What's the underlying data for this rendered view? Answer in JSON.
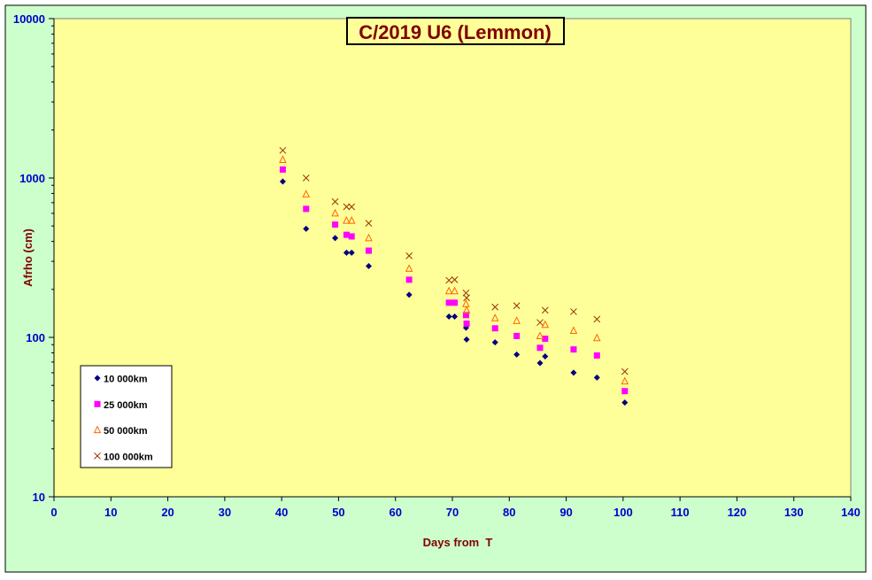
{
  "colors": {
    "outer_background": "#CCFFCC",
    "plot_background": "#FFFF99",
    "axis_tick_labels": "#0000CC",
    "axis_titles": "#800000",
    "title_text": "#800000"
  },
  "chart_data": {
    "type": "scatter",
    "title": "C/2019 U6 (Lemmon)",
    "xlabel": "Days from  T",
    "ylabel": "Afrho (cm)",
    "xlim": [
      0,
      140
    ],
    "ylim": [
      10,
      10000
    ],
    "yscale": "log",
    "grid": false,
    "legend_position": "bottom-left",
    "x_ticks": [
      "0",
      "10",
      "20",
      "30",
      "40",
      "50",
      "60",
      "70",
      "80",
      "90",
      "100",
      "110",
      "120",
      "130",
      "140"
    ],
    "y_ticks": [
      "10",
      "100",
      "1000",
      "10000"
    ],
    "series": [
      {
        "name": "10 000km",
        "marker": "diamond",
        "color": "#000080",
        "points": [
          [
            40.2,
            950
          ],
          [
            44.3,
            480
          ],
          [
            49.4,
            420
          ],
          [
            51.4,
            340
          ],
          [
            52.3,
            340
          ],
          [
            55.3,
            280
          ],
          [
            62.4,
            185
          ],
          [
            69.4,
            135
          ],
          [
            70.4,
            135
          ],
          [
            72.4,
            115
          ],
          [
            72.5,
            97
          ],
          [
            77.5,
            93
          ],
          [
            81.3,
            78
          ],
          [
            85.4,
            69
          ],
          [
            86.3,
            76
          ],
          [
            91.3,
            60
          ],
          [
            95.4,
            56
          ],
          [
            100.3,
            39
          ]
        ]
      },
      {
        "name": "25 000km",
        "marker": "square",
        "color": "#FF00FF",
        "points": [
          [
            40.2,
            1130
          ],
          [
            44.3,
            640
          ],
          [
            49.4,
            510
          ],
          [
            51.4,
            440
          ],
          [
            52.3,
            430
          ],
          [
            55.3,
            350
          ],
          [
            62.4,
            230
          ],
          [
            69.4,
            165
          ],
          [
            70.4,
            165
          ],
          [
            72.4,
            138
          ],
          [
            72.5,
            122
          ],
          [
            77.5,
            114
          ],
          [
            81.3,
            102
          ],
          [
            85.4,
            86
          ],
          [
            86.3,
            98
          ],
          [
            91.3,
            84
          ],
          [
            95.4,
            77
          ],
          [
            100.3,
            46
          ]
        ]
      },
      {
        "name": "50 000km",
        "marker": "triangle",
        "color": "#FF6600",
        "points": [
          [
            40.2,
            1300
          ],
          [
            44.3,
            790
          ],
          [
            49.4,
            600
          ],
          [
            51.4,
            540
          ],
          [
            52.3,
            540
          ],
          [
            55.3,
            420
          ],
          [
            62.4,
            270
          ],
          [
            69.4,
            195
          ],
          [
            70.4,
            195
          ],
          [
            72.4,
            162
          ],
          [
            72.5,
            148
          ],
          [
            77.5,
            132
          ],
          [
            81.3,
            127
          ],
          [
            85.4,
            102
          ],
          [
            86.3,
            120
          ],
          [
            91.3,
            110
          ],
          [
            95.4,
            99
          ],
          [
            100.3,
            53
          ]
        ]
      },
      {
        "name": "100 000km",
        "marker": "x",
        "color": "#993300",
        "points": [
          [
            40.2,
            1490
          ],
          [
            44.3,
            1000
          ],
          [
            49.4,
            710
          ],
          [
            51.4,
            660
          ],
          [
            52.3,
            660
          ],
          [
            55.3,
            520
          ],
          [
            62.4,
            325
          ],
          [
            69.4,
            228
          ],
          [
            70.4,
            230
          ],
          [
            72.4,
            190
          ],
          [
            72.5,
            177
          ],
          [
            77.5,
            155
          ],
          [
            81.3,
            158
          ],
          [
            85.4,
            124
          ],
          [
            86.3,
            148
          ],
          [
            91.3,
            145
          ],
          [
            95.4,
            130
          ],
          [
            100.3,
            61
          ]
        ]
      }
    ]
  }
}
